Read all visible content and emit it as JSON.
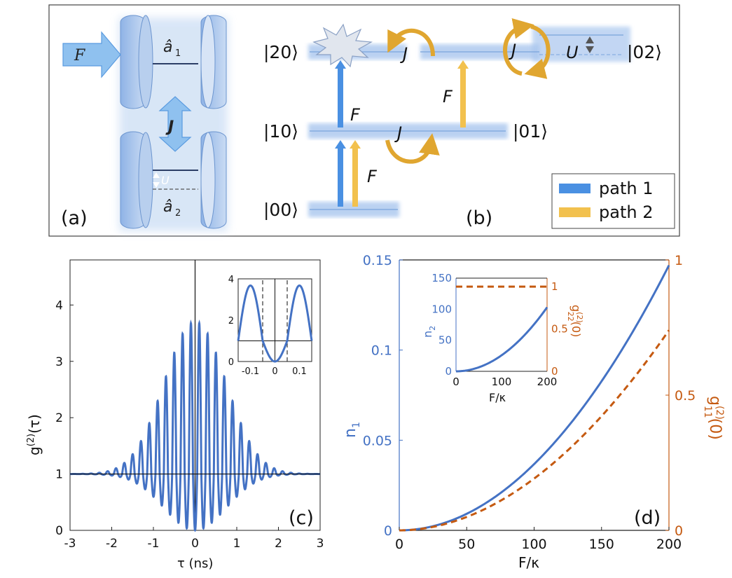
{
  "panel_a": {
    "label": "(a)",
    "drive": "F",
    "mode1": "â",
    "mode1_sub": "1",
    "mode2": "â",
    "mode2_sub": "2",
    "coupling": "J",
    "shift": "U"
  },
  "panel_b": {
    "label": "(b)",
    "states": [
      "|00⟩",
      "|10⟩",
      "|01⟩",
      "|20⟩",
      "|02⟩"
    ],
    "F": "F",
    "J": "J",
    "U": "U",
    "legend": [
      {
        "label": "path 1",
        "color": "#4a90e2"
      },
      {
        "label": "path 2",
        "color": "#f2c14e"
      }
    ]
  },
  "panel_c": {
    "label": "(c)",
    "xlabel": "τ (ns)",
    "ylabel_main": "g",
    "ylabel_sup": "(2)",
    "ylabel_arg": "(τ)",
    "xticks": [
      "-3",
      "-2",
      "-1",
      "0",
      "1",
      "2",
      "3"
    ],
    "yticks": [
      "0",
      "1",
      "2",
      "3",
      "4"
    ],
    "inset_xticks": [
      "-0.1",
      "0",
      "0.1"
    ],
    "inset_yticks": [
      "0",
      "2",
      "4"
    ]
  },
  "panel_d": {
    "label": "(d)",
    "xlabel": "F/κ",
    "ylabel_left": "n",
    "ylabel_left_sub": "1",
    "ylabel_right": "g",
    "ylabel_right_sup": "(2)",
    "ylabel_right_sub": "11",
    "ylabel_right_arg": "(0)",
    "xticks": [
      "0",
      "50",
      "100",
      "150",
      "200"
    ],
    "yticks_left": [
      "0",
      "0.05",
      "0.1",
      "0.15"
    ],
    "yticks_right": [
      "0",
      "0.5",
      "1"
    ],
    "inset": {
      "xlabel": "F/κ",
      "ylabel_left": "n",
      "ylabel_left_sub": "2",
      "ylabel_right": "g",
      "ylabel_right_sup": "(2)",
      "ylabel_right_sub": "22",
      "ylabel_right_arg": "(0)",
      "xticks": [
        "0",
        "100",
        "200"
      ],
      "yticks_left": [
        "0",
        "50",
        "100",
        "150"
      ],
      "yticks_right": [
        "0",
        "0.5",
        "1"
      ]
    }
  },
  "colors": {
    "blue": "#4472c4",
    "orange": "#c55a11",
    "path1": "#4a90e2",
    "path2": "#f2c14e"
  },
  "chart_data": [
    {
      "type": "line",
      "panel": "(c)",
      "xlabel": "τ (ns)",
      "ylabel": "g(2)(τ)",
      "xlim": [
        -3,
        3
      ],
      "ylim": [
        0,
        4.8
      ],
      "envelope_peak": 3.7,
      "oscillation_period_ns": 0.2,
      "decay_width_ns": 1.0,
      "baseline": 1,
      "inset": {
        "xlim": [
          -0.15,
          0.15
        ],
        "ylim": [
          0,
          4
        ],
        "dashed_lines_x": [
          -0.05,
          0.05
        ],
        "peak": 3.7
      }
    },
    {
      "type": "line",
      "panel": "(d)",
      "xlabel": "F/κ",
      "ylim_left": [
        0,
        0.15
      ],
      "ylim_right": [
        0,
        1
      ],
      "xlim": [
        0,
        200
      ],
      "series": [
        {
          "name": "n1",
          "axis": "left",
          "style": "solid",
          "x": [
            0,
            50,
            100,
            150,
            200
          ],
          "y": [
            0,
            0.009,
            0.037,
            0.083,
            0.147
          ]
        },
        {
          "name": "g11(2)(0)",
          "axis": "right",
          "style": "dashed",
          "x": [
            0,
            50,
            100,
            150,
            200
          ],
          "y": [
            0,
            0.06,
            0.23,
            0.48,
            0.74
          ]
        }
      ],
      "inset": {
        "xlim": [
          0,
          200
        ],
        "series": [
          {
            "name": "n2",
            "axis": "left",
            "ylim": [
              0,
              150
            ],
            "x": [
              0,
              50,
              100,
              150,
              200
            ],
            "y": [
              0,
              7,
              26,
              58,
              103
            ]
          },
          {
            "name": "g22(2)(0)",
            "axis": "right",
            "ylim": [
              0,
              1.1
            ],
            "x": [
              0,
              200
            ],
            "y": [
              1,
              1
            ]
          }
        ]
      }
    }
  ]
}
